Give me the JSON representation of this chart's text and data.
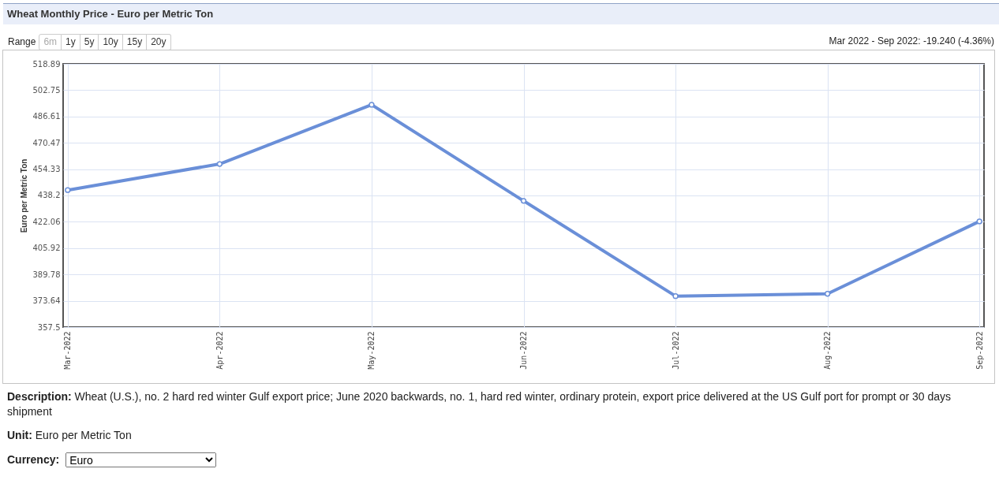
{
  "chart_data": {
    "type": "line",
    "title": "Wheat Monthly Price - Euro per Metric Ton",
    "ylabel": "Euro per Metric Ton",
    "categories": [
      "Mar-2022",
      "Apr-2022",
      "May-2022",
      "Jun-2022",
      "Jul-2022",
      "Aug-2022",
      "Sep-2022"
    ],
    "values": [
      441.5,
      457.5,
      493.8,
      434.9,
      376.5,
      377.9,
      422.3
    ],
    "color": "#6a8fd8",
    "ylim": [
      357.5,
      518.89
    ],
    "yticks": [
      357.5,
      373.64,
      389.78,
      405.92,
      422.06,
      438.2,
      454.33,
      470.47,
      486.61,
      502.75,
      518.89
    ],
    "grid": true,
    "marker": "circle",
    "line_style": "solid",
    "annotations": [
      "Range",
      "6m",
      "1y",
      "5y",
      "10y",
      "15y",
      "20y",
      "Mar 2022 - Sep 2022: -19.240 (-4.36%)",
      "Description:",
      "Wheat (U.S.), no. 2 hard red winter Gulf export price; June 2020 backwards, no. 1, hard red winter, ordinary protein, export price delivered at the US Gulf port for prompt or 30 days shipment",
      "Unit:",
      "Euro per Metric Ton",
      "Currency:",
      "Euro"
    ]
  }
}
